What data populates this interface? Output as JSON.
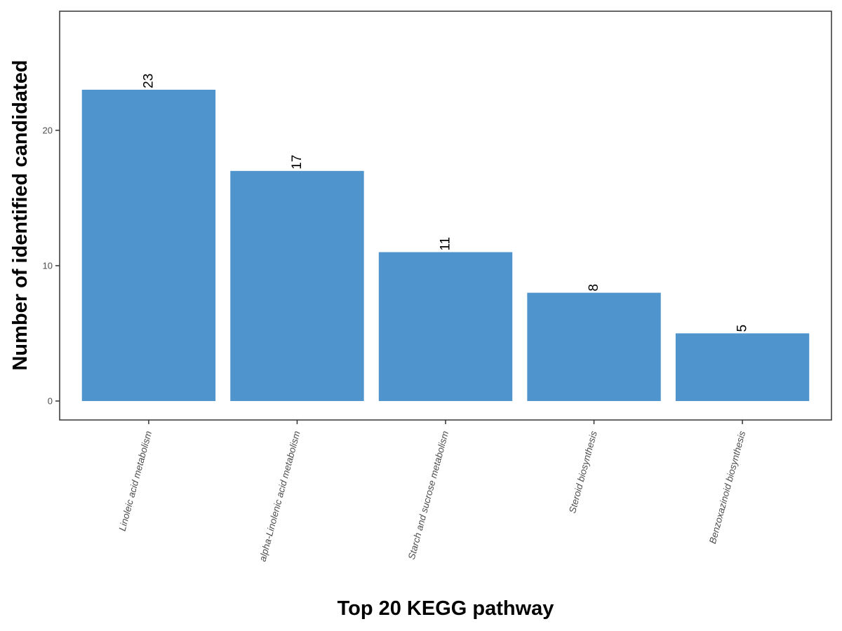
{
  "chart_data": {
    "type": "bar",
    "title": "",
    "xlabel": "Top 20 KEGG pathway",
    "ylabel": "Number of identified candidated",
    "categories": [
      "Linoleic acid metabolism",
      "alpha-Linolenic acid metabolism",
      "Starch and sucrose metabolism",
      "Steroid biosynthesis",
      "Benzoxazinoid biosynthesis"
    ],
    "values": [
      23,
      17,
      11,
      8,
      5
    ],
    "data_labels": [
      "23",
      "17",
      "11",
      "8",
      "5"
    ],
    "yticks": [
      0,
      10,
      20
    ],
    "ytick_labels": [
      "0",
      "10",
      "20"
    ],
    "ylim": [
      -1.4,
      28.8
    ],
    "grid": false,
    "legend": "none",
    "bar_color": "#4F94CD",
    "panel_border_color": "#333333"
  }
}
